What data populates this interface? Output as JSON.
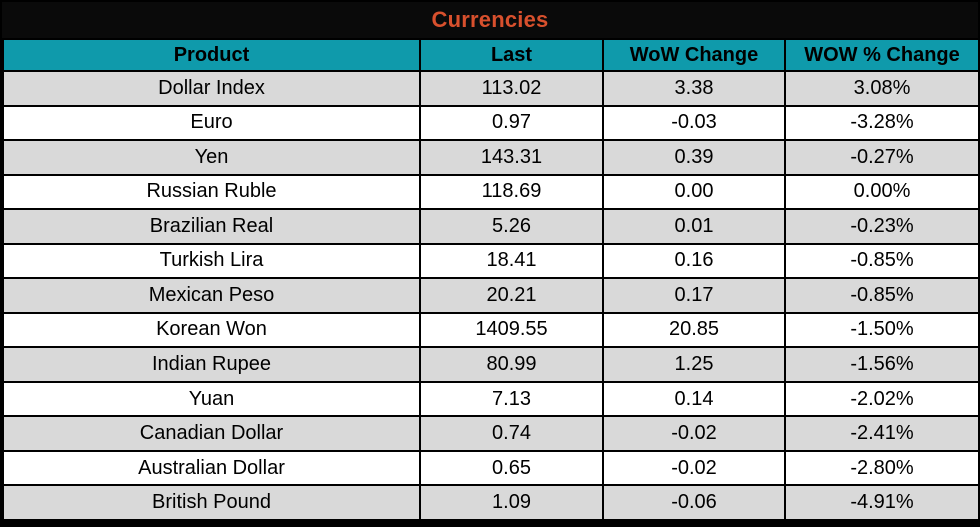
{
  "chart_data": {
    "type": "table",
    "title": "Currencies",
    "columns": [
      "Product",
      "Last",
      "WoW Change",
      "WOW % Change"
    ],
    "rows": [
      {
        "product": "Dollar Index",
        "last": "113.02",
        "wow_change": "3.38",
        "wow_pct_change": "3.08%"
      },
      {
        "product": "Euro",
        "last": "0.97",
        "wow_change": "-0.03",
        "wow_pct_change": "-3.28%"
      },
      {
        "product": "Yen",
        "last": "143.31",
        "wow_change": "0.39",
        "wow_pct_change": "-0.27%"
      },
      {
        "product": "Russian Ruble",
        "last": "118.69",
        "wow_change": "0.00",
        "wow_pct_change": "0.00%"
      },
      {
        "product": "Brazilian Real",
        "last": "5.26",
        "wow_change": "0.01",
        "wow_pct_change": "-0.23%"
      },
      {
        "product": "Turkish Lira",
        "last": "18.41",
        "wow_change": "0.16",
        "wow_pct_change": "-0.85%"
      },
      {
        "product": "Mexican Peso",
        "last": "20.21",
        "wow_change": "0.17",
        "wow_pct_change": "-0.85%"
      },
      {
        "product": "Korean Won",
        "last": "1409.55",
        "wow_change": "20.85",
        "wow_pct_change": "-1.50%"
      },
      {
        "product": "Indian Rupee",
        "last": "80.99",
        "wow_change": "1.25",
        "wow_pct_change": "-1.56%"
      },
      {
        "product": "Yuan",
        "last": "7.13",
        "wow_change": "0.14",
        "wow_pct_change": "-2.02%"
      },
      {
        "product": "Canadian Dollar",
        "last": "0.74",
        "wow_change": "-0.02",
        "wow_pct_change": "-2.41%"
      },
      {
        "product": "Australian Dollar",
        "last": "0.65",
        "wow_change": "-0.02",
        "wow_pct_change": "-2.80%"
      },
      {
        "product": "British Pound",
        "last": "1.09",
        "wow_change": "-0.06",
        "wow_pct_change": "-4.91%"
      }
    ],
    "layout": {
      "first_column_align": "left",
      "value_columns_align": "center",
      "alternating_rows": true
    }
  },
  "colors": {
    "title_background": "#0a0a0a",
    "title_text": "#d8502d",
    "header_background": "#0f9aab",
    "header_text": "#000000",
    "row_alternate_background": "#d9d9d9",
    "row_background": "#ffffff",
    "grid_border": "#000000",
    "cell_text": "#000000"
  }
}
